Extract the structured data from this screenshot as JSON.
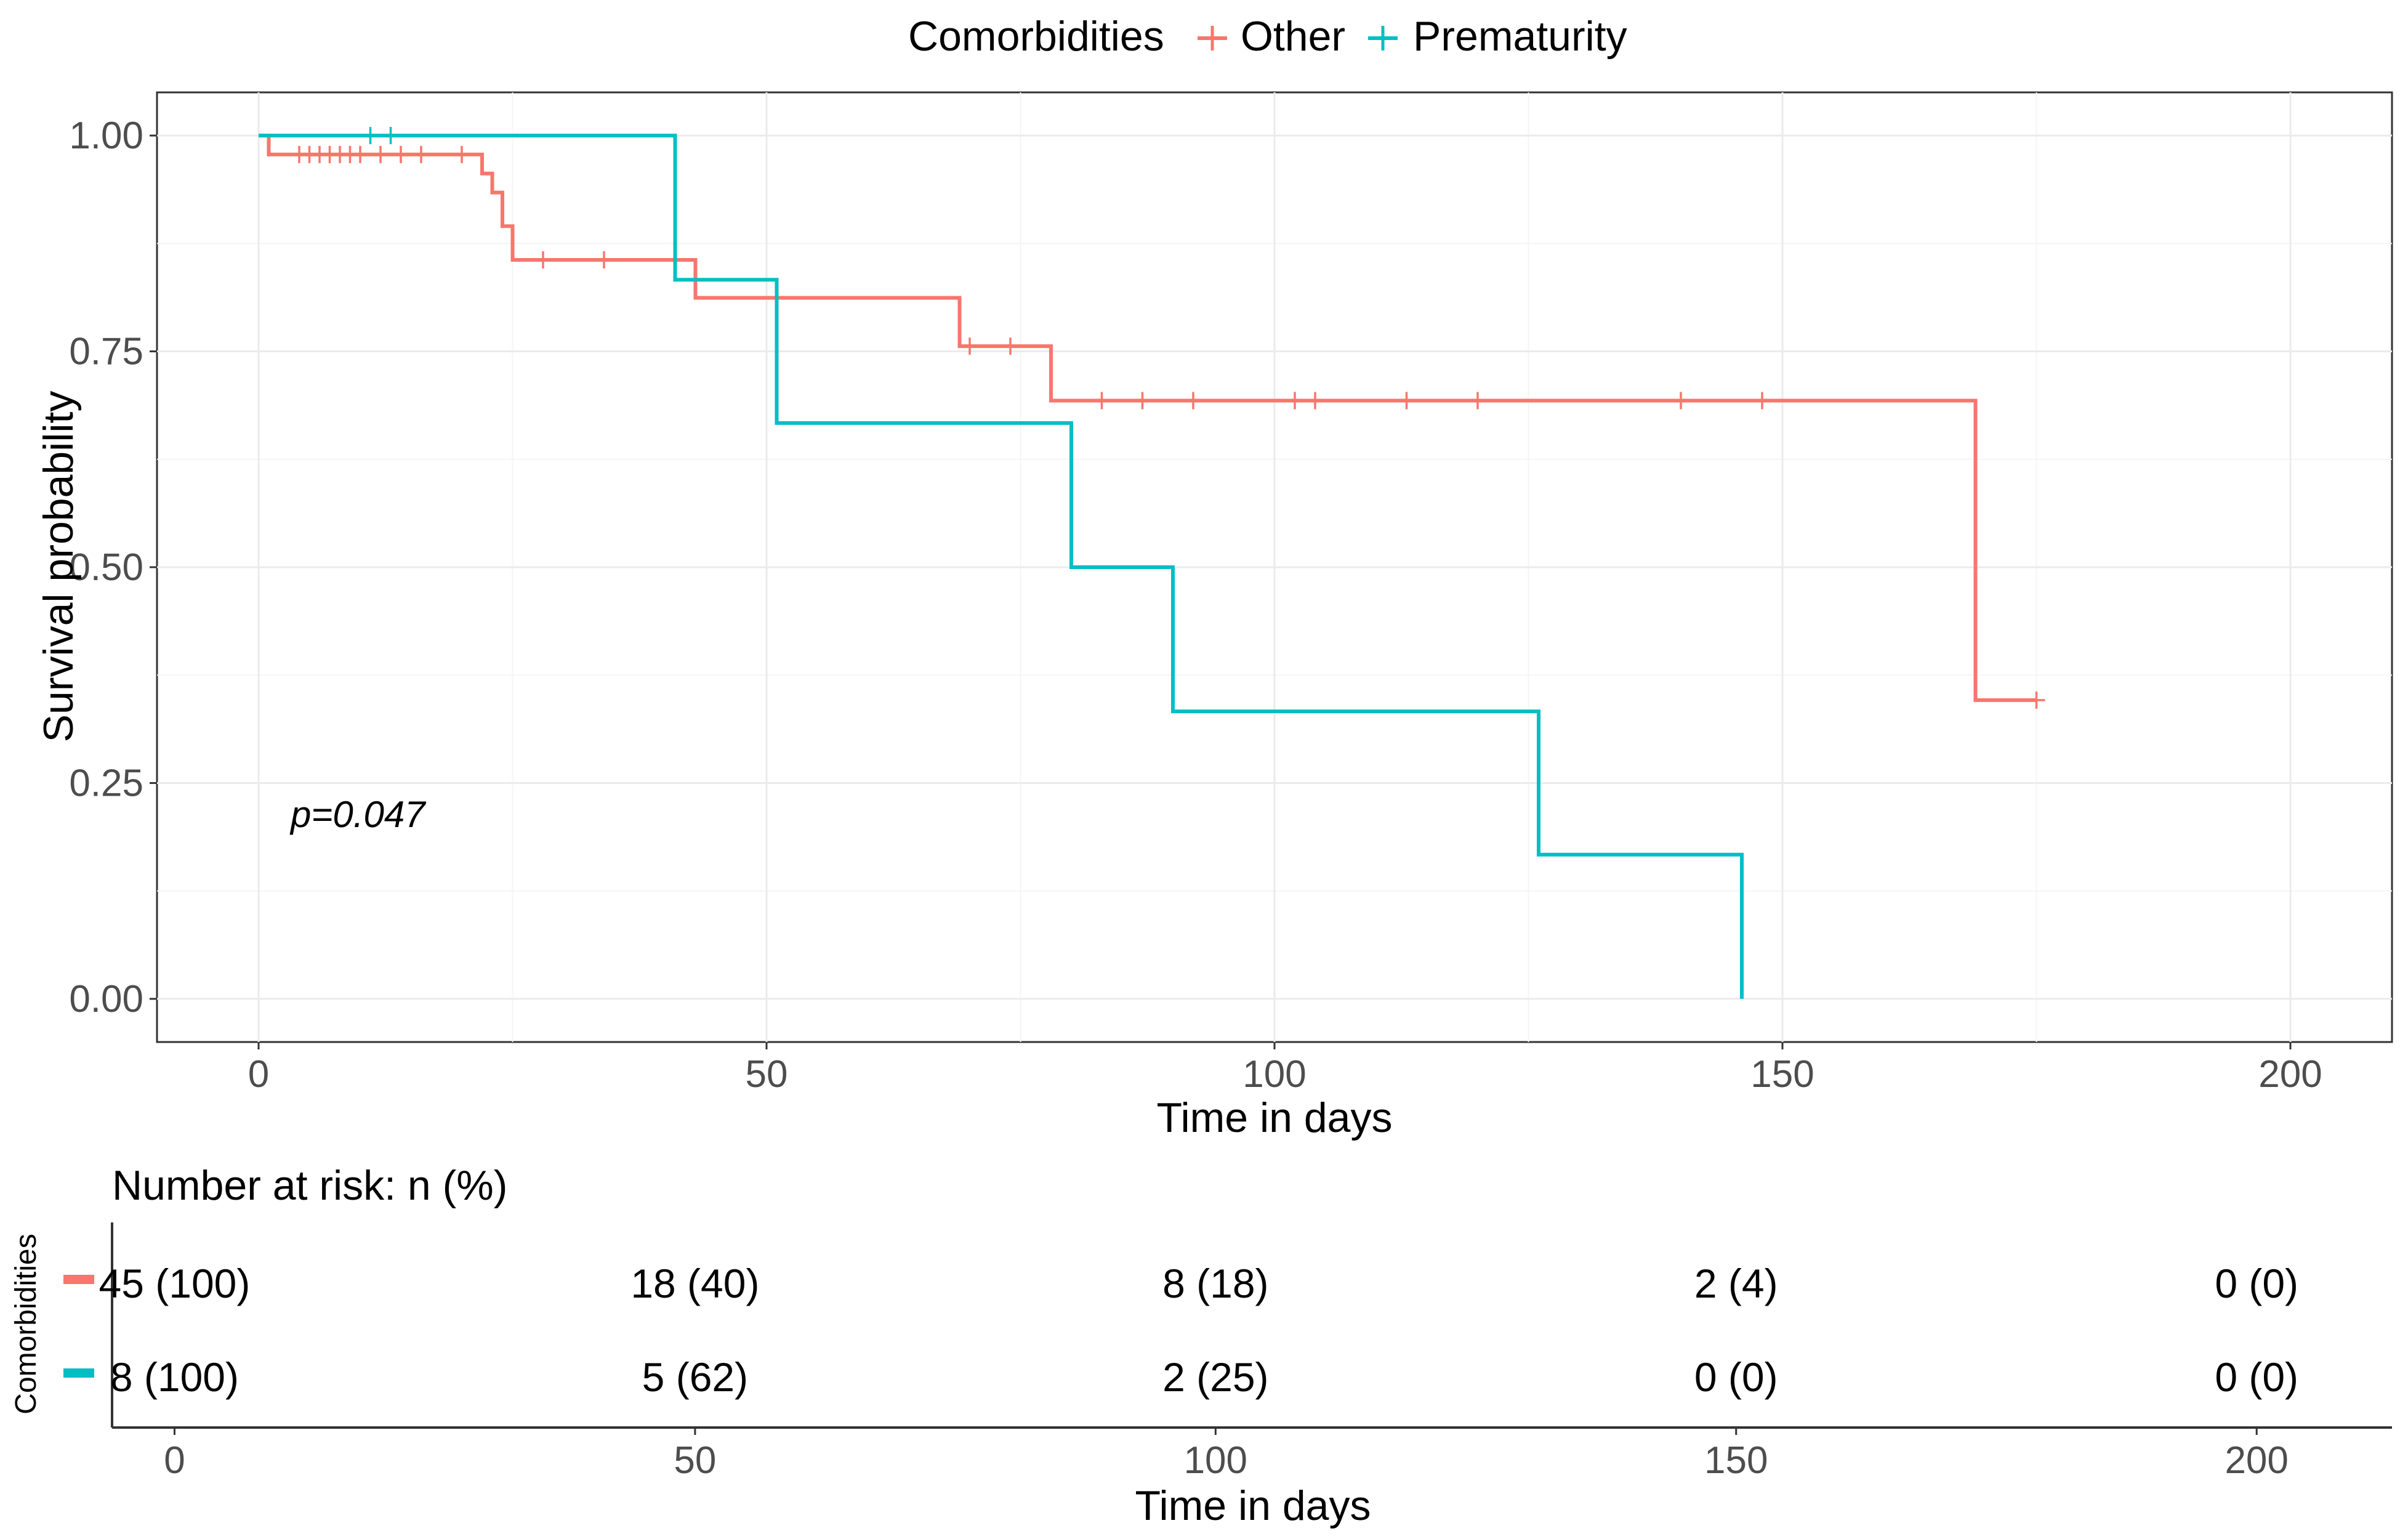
{
  "chart_data": {
    "type": "line",
    "subtype": "kaplan-meier",
    "legend": {
      "title": "Comorbidities",
      "position": "top",
      "entries": [
        {
          "name": "Other",
          "color": "#F8766D"
        },
        {
          "name": "Prematurity",
          "color": "#00BFC4"
        }
      ]
    },
    "xlabel": "Time in days",
    "ylabel": "Survival probability",
    "xlim": [
      -10,
      210
    ],
    "ylim": [
      -0.05,
      1.05
    ],
    "x_ticks": [
      0,
      50,
      100,
      150,
      200
    ],
    "x_tick_labels": [
      "0",
      "50",
      "100",
      "150",
      "200"
    ],
    "y_ticks": [
      0,
      0.25,
      0.5,
      0.75,
      1.0
    ],
    "y_tick_labels": [
      "0.00",
      "0.25",
      "0.50",
      "0.75",
      "1.00"
    ],
    "grid": true,
    "annotation": "p=0.047",
    "series": [
      {
        "name": "Other",
        "color": "#F8766D",
        "steps": [
          [
            0,
            1.0
          ],
          [
            1,
            0.978
          ],
          [
            22,
            0.956
          ],
          [
            23,
            0.934
          ],
          [
            24,
            0.895
          ],
          [
            25,
            0.856
          ],
          [
            43,
            0.812
          ],
          [
            69,
            0.756
          ],
          [
            78,
            0.693
          ],
          [
            169,
            0.346
          ],
          [
            175,
            0.346
          ]
        ],
        "censor_times": [
          4,
          5,
          6,
          7,
          8,
          9,
          10,
          12,
          14,
          16,
          20,
          28,
          34,
          70,
          74,
          83,
          87,
          92,
          102,
          104,
          113,
          120,
          140,
          148,
          175
        ]
      },
      {
        "name": "Prematurity",
        "color": "#00BFC4",
        "steps": [
          [
            0,
            1.0
          ],
          [
            41,
            0.833
          ],
          [
            51,
            0.667
          ],
          [
            80,
            0.5
          ],
          [
            90,
            0.333
          ],
          [
            126,
            0.167
          ],
          [
            146,
            0.0
          ]
        ],
        "censor_times": [
          11,
          13
        ]
      }
    ],
    "risk_table": {
      "title": "Number at risk: n (%)",
      "ylabel": "Comorbidities",
      "xlabel": "Time in days",
      "times": [
        0,
        50,
        100,
        150,
        200
      ],
      "rows": [
        {
          "name": "Other",
          "color": "#F8766D",
          "values": [
            "45 (100)",
            "18 (40)",
            "8 (18)",
            "2 (4)",
            "0 (0)"
          ]
        },
        {
          "name": "Prematurity",
          "color": "#00BFC4",
          "values": [
            "8 (100)",
            "5 (62)",
            "2 (25)",
            "0 (0)",
            "0 (0)"
          ]
        }
      ],
      "x_tick_labels": [
        "0",
        "50",
        "100",
        "150",
        "200"
      ]
    }
  }
}
